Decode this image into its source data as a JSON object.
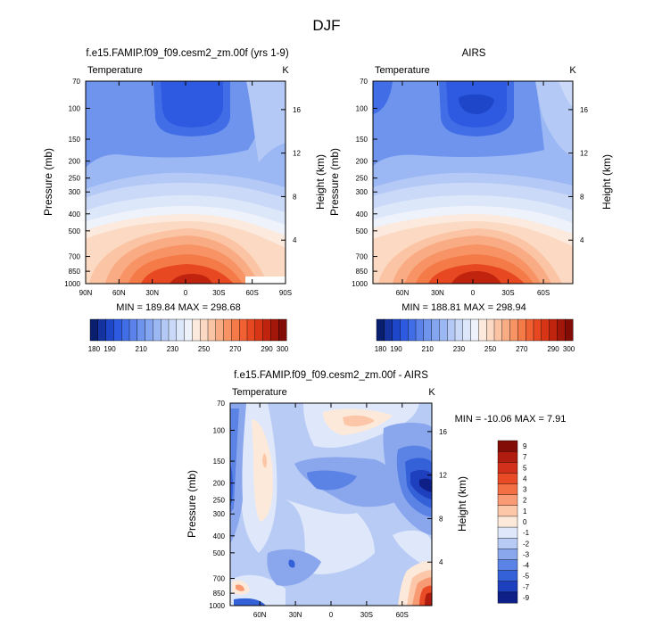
{
  "figure_title": "DJF",
  "chart_data": [
    {
      "type": "heatmap",
      "title": "f.e15.FAMIP.f09_f09.cesm2_zm.00f (yrs 1-9)",
      "left_label": "Temperature",
      "units": "K",
      "ylabel": "Pressure (mb)",
      "y2label": "Height (km)",
      "x_ticks": [
        "90N",
        "60N",
        "30N",
        "0",
        "30S",
        "60S",
        "90S"
      ],
      "x_values": [
        90,
        60,
        30,
        0,
        -30,
        -60,
        -90
      ],
      "xlim": [
        90,
        -90
      ],
      "y_ticks": [
        "70",
        "100",
        "150",
        "200",
        "250",
        "300",
        "400",
        "500",
        "700",
        "850",
        "1000"
      ],
      "y_values": [
        70,
        100,
        150,
        200,
        250,
        300,
        400,
        500,
        700,
        850,
        1000
      ],
      "ylim": [
        1000,
        70
      ],
      "y2_ticks": [
        "16",
        "12",
        "8",
        "4"
      ],
      "y2_values": [
        16,
        12,
        8,
        4
      ],
      "stats": "MIN = 189.84   MAX = 298.68",
      "levels": [
        180,
        185,
        190,
        195,
        200,
        205,
        210,
        215,
        220,
        225,
        230,
        235,
        240,
        245,
        250,
        255,
        260,
        265,
        270,
        275,
        280,
        285,
        290,
        295,
        300
      ],
      "colorbar_labels": [
        "180",
        "190",
        "210",
        "230",
        "250",
        "270",
        "290",
        "300"
      ]
    },
    {
      "type": "heatmap",
      "title": "AIRS",
      "left_label": "Temperature",
      "units": "K",
      "ylabel": "Pressure (mb)",
      "y2label": "Height (km)",
      "x_ticks": [
        "60N",
        "30N",
        "0",
        "30S",
        "60S"
      ],
      "x_values": [
        60,
        30,
        0,
        -30,
        -60
      ],
      "xlim": [
        85,
        -85
      ],
      "y_ticks": [
        "70",
        "100",
        "150",
        "200",
        "250",
        "300",
        "400",
        "500",
        "700",
        "850",
        "1000"
      ],
      "y_values": [
        70,
        100,
        150,
        200,
        250,
        300,
        400,
        500,
        700,
        850,
        1000
      ],
      "ylim": [
        1000,
        70
      ],
      "y2_ticks": [
        "16",
        "12",
        "8",
        "4"
      ],
      "y2_values": [
        16,
        12,
        8,
        4
      ],
      "stats": "MIN = 188.81   MAX = 298.94",
      "levels": [
        180,
        185,
        190,
        195,
        200,
        205,
        210,
        215,
        220,
        225,
        230,
        235,
        240,
        245,
        250,
        255,
        260,
        265,
        270,
        275,
        280,
        285,
        290,
        295,
        300
      ],
      "colorbar_labels": [
        "180",
        "190",
        "210",
        "230",
        "250",
        "270",
        "290",
        "300"
      ]
    },
    {
      "type": "heatmap",
      "title": "f.e15.FAMIP.f09_f09.cesm2_zm.00f - AIRS",
      "left_label": "Temperature",
      "units": "K",
      "ylabel": "Pressure (mb)",
      "y2label": "Height (km)",
      "x_ticks": [
        "60N",
        "30N",
        "0",
        "30S",
        "60S"
      ],
      "x_values": [
        60,
        30,
        0,
        -30,
        -60
      ],
      "xlim": [
        85,
        -85
      ],
      "y_ticks": [
        "70",
        "100",
        "150",
        "200",
        "250",
        "300",
        "400",
        "500",
        "700",
        "850",
        "1000"
      ],
      "y_values": [
        70,
        100,
        150,
        200,
        250,
        300,
        400,
        500,
        700,
        850,
        1000
      ],
      "ylim": [
        1000,
        70
      ],
      "y2_ticks": [
        "16",
        "12",
        "8",
        "4"
      ],
      "y2_values": [
        16,
        12,
        8,
        4
      ],
      "stats": "MIN = -10.06   MAX =   7.91",
      "levels": [
        -9,
        -7,
        -5,
        -4,
        -3,
        -2,
        -1,
        0,
        1,
        2,
        3,
        4,
        5,
        7,
        9
      ],
      "colorbar_labels": [
        "9",
        "7",
        "5",
        "4",
        "3",
        "2",
        "1",
        "0",
        "-1",
        "-2",
        "-3",
        "-4",
        "-5",
        "-7",
        "-9"
      ]
    }
  ],
  "colors": {
    "temp_scale": [
      "#0a1e6e",
      "#1432a0",
      "#1e46c8",
      "#2d5ae1",
      "#416ee6",
      "#5a82ea",
      "#6e94ee",
      "#84a6f1",
      "#9cb8f4",
      "#b4c9f6",
      "#cad9f8",
      "#dde7fa",
      "#eef2fb",
      "#fbeadd",
      "#fbd9c2",
      "#fbc4a4",
      "#f9ac84",
      "#f79364",
      "#f47a48",
      "#f06032",
      "#e74821",
      "#d73516",
      "#c0240f",
      "#a3170b",
      "#820d07"
    ],
    "diff_scale": [
      "#820d07",
      "#b01c0d",
      "#d2301a",
      "#e84b26",
      "#f36f44",
      "#f89a74",
      "#fbc7a8",
      "#fde9da",
      "#dfe8fa",
      "#b8cbf5",
      "#8aa7ee",
      "#5b83e5",
      "#3461d8",
      "#1e3fbe",
      "#0e1f88"
    ]
  }
}
